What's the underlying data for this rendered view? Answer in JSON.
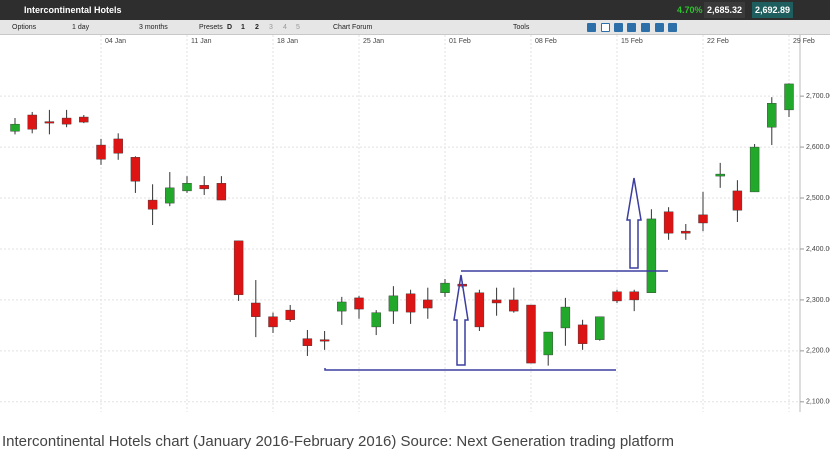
{
  "toolbar": {
    "title": "Intercontinental Hotels",
    "options": "Options",
    "interval": "1 day",
    "range": "3 months",
    "presets": "Presets",
    "buttons": [
      "D",
      "1",
      "2",
      "3",
      "4",
      "5"
    ],
    "forum": "Chart Forum",
    "tools": "Tools",
    "change": "4.70%",
    "bid": "2,685.32",
    "ask": "2,692.89"
  },
  "caption": "Intercontinental Hotels chart (January 2016-February 2016) Source: Next Generation trading platform",
  "chart_data": {
    "type": "candlestick",
    "categories": [
      null,
      null,
      null,
      null,
      null,
      "04 Jan",
      null,
      null,
      null,
      null,
      "11 Jan",
      null,
      null,
      null,
      null,
      "18 Jan",
      null,
      null,
      null,
      null,
      "25 Jan",
      null,
      null,
      null,
      null,
      "01 Feb",
      null,
      null,
      null,
      null,
      "08 Feb",
      null,
      null,
      null,
      null,
      "15 Feb",
      null,
      null,
      null,
      null,
      "22 Feb",
      null,
      null,
      null,
      null,
      "29 Feb"
    ],
    "open": [
      2631,
      2663,
      2650,
      2657,
      2659,
      2604,
      2616,
      2580,
      2496,
      2490,
      2514,
      2525,
      2529,
      2416,
      2294,
      2267,
      2280,
      2224,
      2222,
      2278,
      2304,
      2247,
      2278,
      2312,
      2300,
      2314,
      2331,
      2314,
      2300,
      2300,
      2290,
      2192,
      2245,
      2251,
      2222,
      2316,
      2316,
      2314,
      2473,
      2435,
      2467,
      2543,
      2514,
      2512,
      2639,
      2673
    ],
    "high": [
      2657,
      2669,
      2673,
      2673,
      2663,
      2616,
      2627,
      2582,
      2527,
      2551,
      2543,
      2543,
      2543,
      2416,
      2339,
      2275,
      2290,
      2241,
      2239,
      2306,
      2308,
      2280,
      2327,
      2320,
      2324,
      2341,
      2337,
      2320,
      2324,
      2324,
      2290,
      2237,
      2304,
      2261,
      2267,
      2320,
      2320,
      2478,
      2482,
      2449,
      2512,
      2569,
      2535,
      2606,
      2698,
      2725
    ],
    "low": [
      2625,
      2627,
      2625,
      2639,
      2647,
      2565,
      2575,
      2510,
      2447,
      2484,
      2510,
      2506,
      2496,
      2298,
      2227,
      2235,
      2257,
      2190,
      2202,
      2251,
      2263,
      2231,
      2253,
      2253,
      2263,
      2306,
      2324,
      2239,
      2269,
      2275,
      2176,
      2171,
      2210,
      2202,
      2220,
      2294,
      2278,
      2314,
      2418,
      2418,
      2435,
      2520,
      2453,
      2512,
      2604,
      2659
    ],
    "close": [
      2645,
      2635,
      2648,
      2645,
      2649,
      2576,
      2588,
      2533,
      2478,
      2520,
      2529,
      2518,
      2496,
      2310,
      2267,
      2247,
      2261,
      2210,
      2220,
      2296,
      2282,
      2275,
      2308,
      2276,
      2284,
      2333,
      2327,
      2247,
      2294,
      2278,
      2176,
      2237,
      2286,
      2214,
      2267,
      2298,
      2300,
      2459,
      2431,
      2431,
      2451,
      2547,
      2476,
      2600,
      2686,
      2724
    ],
    "up_color": "#22a82a",
    "down_color": "#dc1414",
    "ylim": [
      2080,
      2820
    ],
    "yticks": [
      {
        "value": 2100,
        "label": "2,100.00"
      },
      {
        "value": 2200,
        "label": "2,200.00"
      },
      {
        "value": 2300,
        "label": "2,300.00"
      },
      {
        "value": 2400,
        "label": "2,400.00"
      },
      {
        "value": 2500,
        "label": "2,500.00"
      },
      {
        "value": 2600,
        "label": "2,600.00"
      },
      {
        "value": 2700,
        "label": "2,700.00"
      }
    ],
    "grid": true
  }
}
